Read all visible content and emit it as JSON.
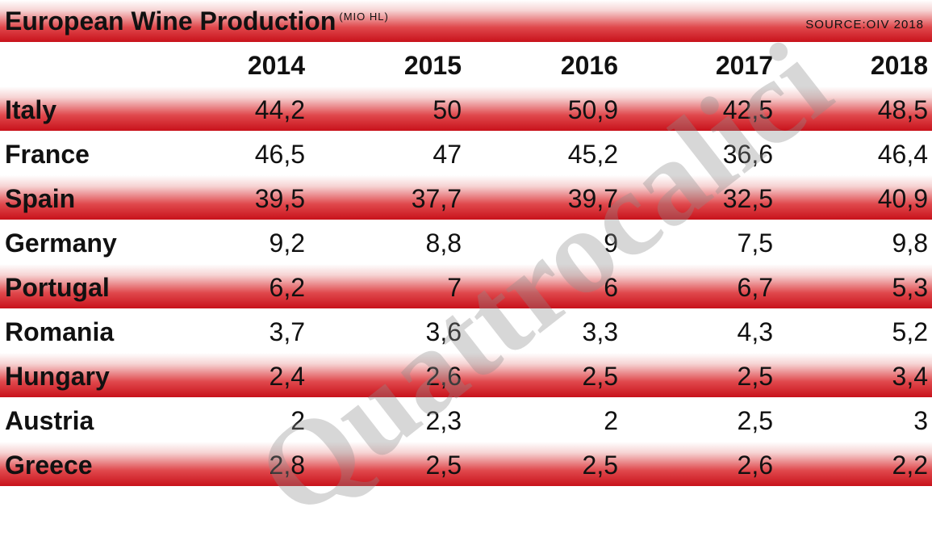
{
  "header": {
    "title": "European Wine Production",
    "unit": "(MIO HL)",
    "source": "SOURCE:OIV 2018"
  },
  "table": {
    "columns": [
      "2014",
      "2015",
      "2016",
      "2017",
      "2018"
    ],
    "rows": [
      [
        "Italy",
        "44,2",
        "50",
        "50,9",
        "42,5",
        "48,5"
      ],
      [
        "France",
        "46,5",
        "47",
        "45,2",
        "36,6",
        "46,4"
      ],
      [
        "Spain",
        "39,5",
        "37,7",
        "39,7",
        "32,5",
        "40,9"
      ],
      [
        "Germany",
        "9,2",
        "8,8",
        "9",
        "7,5",
        "9,8"
      ],
      [
        "Portugal",
        "6,2",
        "7",
        "6",
        "6,7",
        "5,3"
      ],
      [
        "Romania",
        "3,7",
        "3,6",
        "3,3",
        "4,3",
        "5,2"
      ],
      [
        "Hungary",
        "2,4",
        "2,6",
        "2,5",
        "2,5",
        "3,4"
      ],
      [
        "Austria",
        "2",
        "2,3",
        "2",
        "2,5",
        "3"
      ],
      [
        "Greece",
        "2,8",
        "2,5",
        "2,5",
        "2,6",
        "2,2"
      ]
    ]
  },
  "watermark": "Quattrocalici"
}
